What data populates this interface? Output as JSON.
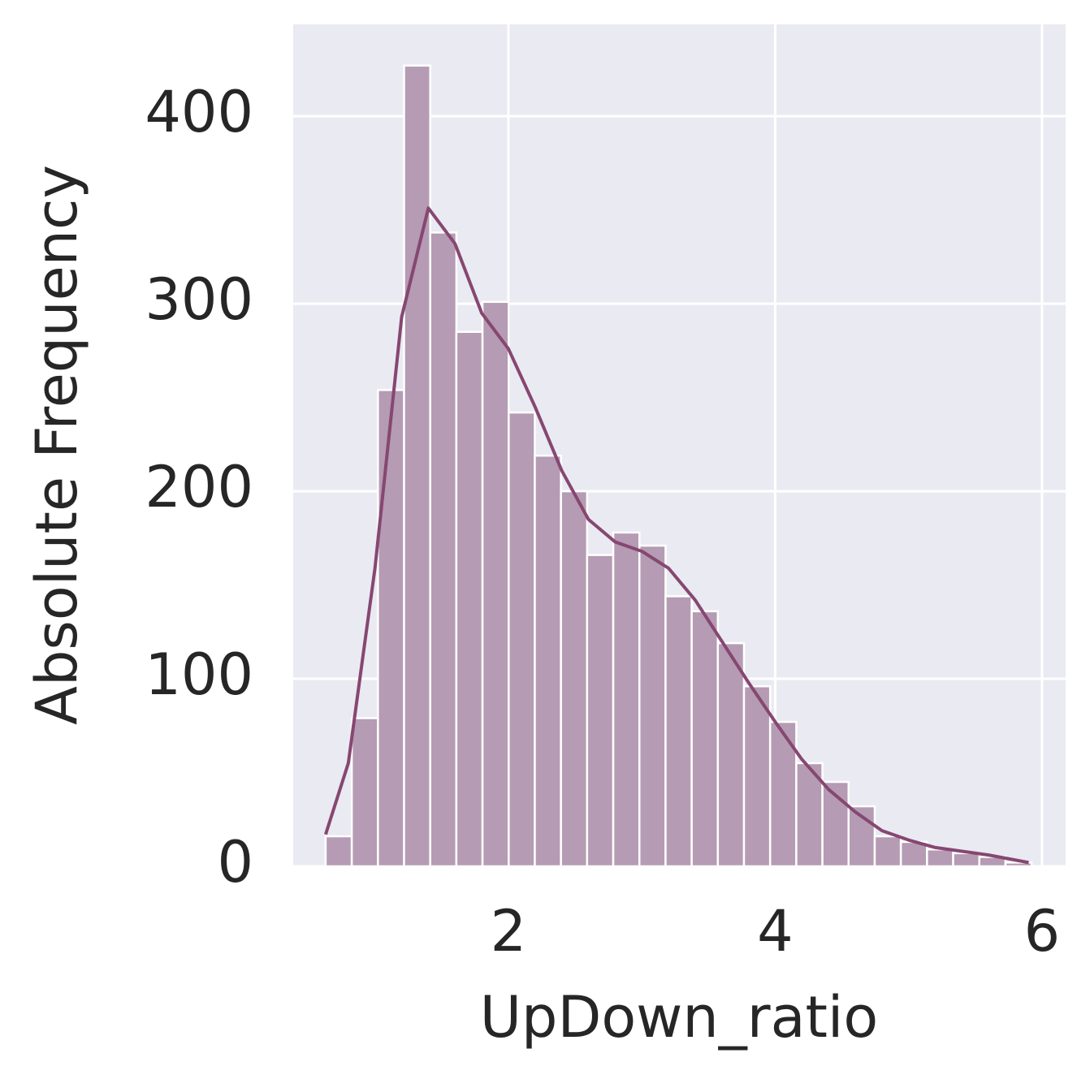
{
  "chart_data": {
    "type": "histogram",
    "x_label": "UpDown_ratio",
    "y_label": "Absolute Frequency",
    "bins": [
      0.63,
      0.826,
      1.022,
      1.218,
      1.414,
      1.61,
      1.806,
      2.002,
      2.198,
      2.394,
      2.59,
      2.786,
      2.982,
      3.178,
      3.374,
      3.57,
      3.766,
      3.962,
      4.158,
      4.354,
      4.55,
      4.746,
      4.942,
      5.138,
      5.334,
      5.53,
      5.726,
      5.922
    ],
    "values": [
      16,
      79,
      254,
      427,
      338,
      285,
      301,
      242,
      219,
      200,
      166,
      178,
      171,
      144,
      136,
      119,
      96,
      77,
      55,
      45,
      32,
      16,
      13,
      9,
      7,
      5,
      2
    ],
    "color": "#b59bb3",
    "kde": {
      "color": "#864771",
      "x": [
        0.63,
        0.8,
        1.0,
        1.2,
        1.4,
        1.6,
        1.8,
        2.0,
        2.2,
        2.4,
        2.6,
        2.8,
        3.0,
        3.2,
        3.4,
        3.6,
        3.8,
        4.0,
        4.2,
        4.4,
        4.6,
        4.8,
        5.0,
        5.2,
        5.4,
        5.6,
        5.9
      ],
      "values": [
        17,
        55,
        159,
        293,
        351,
        332,
        295,
        276,
        245,
        211,
        185,
        173,
        168,
        159,
        142,
        120,
        98,
        77,
        57,
        41,
        29,
        19,
        14,
        10,
        8,
        6,
        2
      ]
    },
    "xlim": [
      0.387,
      6.177
    ],
    "ylim": [
      0,
      449
    ],
    "xticks": [
      2,
      4,
      6
    ],
    "yticks": [
      0,
      100,
      200,
      300,
      400
    ],
    "grid": true
  }
}
